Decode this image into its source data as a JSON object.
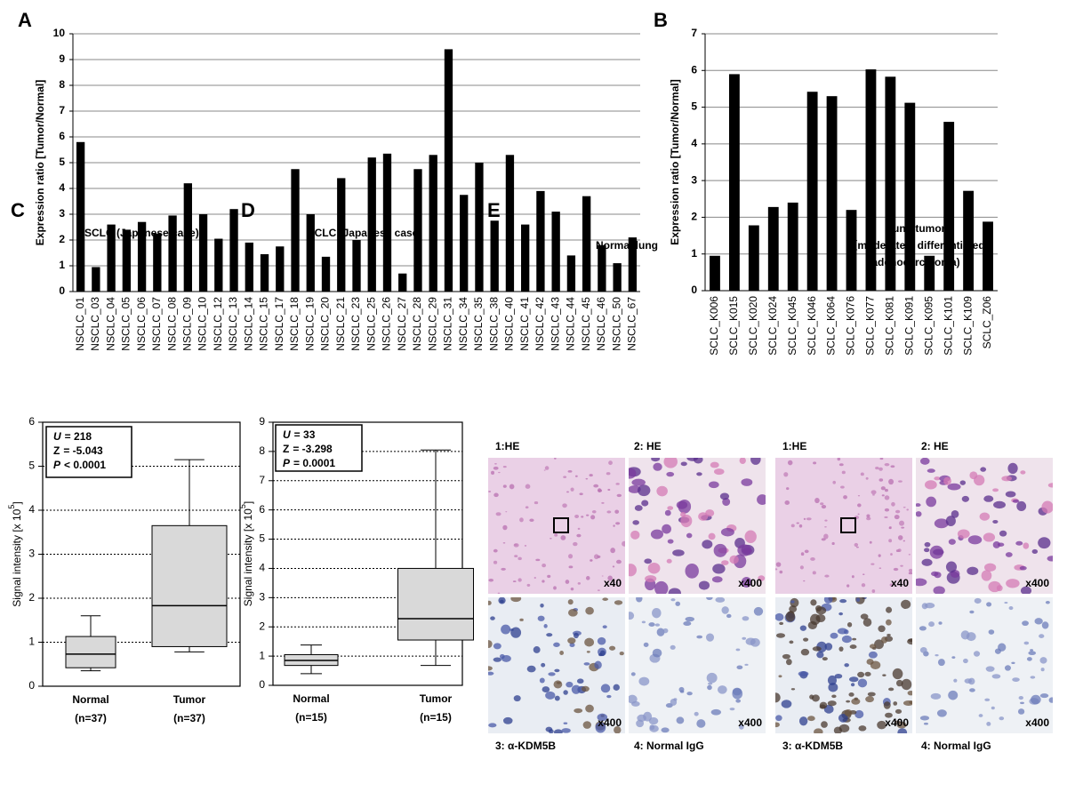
{
  "chart_data": [
    {
      "type": "bar",
      "label": "A",
      "ylabel": "Expression ratio [Tumor/Normal]",
      "categories": [
        "NSCLC_01",
        "NSCLC_03",
        "NSCLC_04",
        "NSCLC_05",
        "NSCLC_06",
        "NSCLC_07",
        "NSCLC_08",
        "NSCLC_09",
        "NSCLC_10",
        "NSCLC_12",
        "NSCLC_13",
        "NSCLC_14",
        "NSCLC_15",
        "NSCLC_17",
        "NSCLC_18",
        "NSCLC_19",
        "NSCLC_20",
        "NSCLC_21",
        "NSCLC_23",
        "NSCLC_25",
        "NSCLC_26",
        "NSCLC_27",
        "NSCLC_28",
        "NSCLC_29",
        "NSCLC_31",
        "NSCLC_34",
        "NSCLC_35",
        "NSCLC_38",
        "NSCLC_40",
        "NSCLC_41",
        "NSCLC_42",
        "NSCLC_43",
        "NSCLC_44",
        "NSCLC_45",
        "NSCLC_46",
        "NSCLC_50",
        "NSCLC_67"
      ],
      "values": [
        5.8,
        0.95,
        2.6,
        2.4,
        2.7,
        2.25,
        2.95,
        4.2,
        3.0,
        2.05,
        3.2,
        1.9,
        1.45,
        1.75,
        4.75,
        3.0,
        1.35,
        4.4,
        2.0,
        5.2,
        5.35,
        0.7,
        4.75,
        5.3,
        9.4,
        3.75,
        5.0,
        2.75,
        5.3,
        2.6,
        3.9,
        3.1,
        1.4,
        3.7,
        1.8,
        1.1,
        2.1
      ],
      "color": "#000000",
      "ylim": [
        0,
        10
      ],
      "yticks": [
        0,
        1,
        2,
        3,
        4,
        5,
        6,
        7,
        8,
        9,
        10
      ],
      "grid": true
    },
    {
      "type": "bar",
      "label": "B",
      "ylabel": "Expression ratio [Tumor/Normal]",
      "categories": [
        "SCLC_K006",
        "SCLC_K015",
        "SCLC_K020",
        "SCLC_K024",
        "SCLC_K045",
        "SCLC_K046",
        "SCLC_K064",
        "SCLC_K076",
        "SCLC_K077",
        "SCLC_K081",
        "SCLC_K091",
        "SCLC_K095",
        "SCLC_K101",
        "SCLC_K109",
        "SCLC_Z06"
      ],
      "values": [
        0.95,
        5.9,
        1.78,
        2.28,
        2.4,
        5.42,
        5.3,
        2.2,
        6.03,
        5.83,
        5.12,
        0.95,
        4.6,
        2.72,
        1.88
      ],
      "color": "#000000",
      "ylim": [
        0,
        7
      ],
      "yticks": [
        0,
        1,
        2,
        3,
        4,
        5,
        6,
        7
      ],
      "grid": true
    },
    {
      "type": "box",
      "label": "C",
      "title": "NSCLC (Japanese case)",
      "ylabel": "Signal intensity [x 10",
      "ylabel_sup": "5",
      "ylabel_end": "]",
      "categories": [
        "Normal",
        "Tumor"
      ],
      "n_labels": [
        "(n=37)",
        "(n=37)"
      ],
      "boxes": [
        {
          "whislo": 0.35,
          "q1": 0.42,
          "med": 0.73,
          "q3": 1.13,
          "whishi": 1.6
        },
        {
          "whislo": 0.78,
          "q1": 0.9,
          "med": 1.83,
          "q3": 3.65,
          "whishi": 5.15
        }
      ],
      "stats": [
        {
          "symbol": "U",
          "italic": true,
          "text": "= 218"
        },
        {
          "symbol": "Z",
          "italic": false,
          "text": "= -5.043"
        },
        {
          "symbol": "P",
          "italic": true,
          "text": "< 0.0001"
        }
      ],
      "color": "#d9d9d9",
      "ylim": [
        0,
        6
      ],
      "yticks": [
        0,
        1,
        2,
        3,
        4,
        5,
        6
      ],
      "grid": true
    },
    {
      "type": "box",
      "label": "D",
      "title": "SCLC (Japanese case)",
      "ylabel": "Signal intensity [x 10",
      "ylabel_sup": "5",
      "ylabel_end": "]",
      "categories": [
        "Normal",
        "Tumor"
      ],
      "n_labels": [
        "(n=15)",
        "(n=15)"
      ],
      "boxes": [
        {
          "whislo": 0.4,
          "q1": 0.68,
          "med": 0.85,
          "q3": 1.05,
          "whishi": 1.38
        },
        {
          "whislo": 0.68,
          "q1": 1.55,
          "med": 2.28,
          "q3": 4.0,
          "whishi": 8.05
        }
      ],
      "stats": [
        {
          "symbol": "U",
          "italic": true,
          "text": "= 33"
        },
        {
          "symbol": "Z",
          "italic": false,
          "text": "= -3.298"
        },
        {
          "symbol": "P",
          "italic": true,
          "text": "= 0.0001"
        }
      ],
      "color": "#d9d9d9",
      "ylim": [
        0,
        9
      ],
      "yticks": [
        0,
        1,
        2,
        3,
        4,
        5,
        6,
        7,
        8,
        9
      ],
      "grid": true
    }
  ],
  "panel_e": {
    "label": "E",
    "groups": [
      {
        "title_lines": [
          "Normal lung"
        ],
        "images": [
          {
            "label": "1:HE",
            "mag": "x40"
          },
          {
            "label": "2: HE",
            "mag": "x400"
          },
          {
            "label": "3: α-KDM5B",
            "mag": "x400"
          },
          {
            "label": "4: Normal IgG",
            "mag": "x400"
          }
        ]
      },
      {
        "title_lines": [
          "Lung tumor",
          "（moderately differentiated",
          "adenocarcinoma)"
        ],
        "images": [
          {
            "label": "1:HE",
            "mag": "x40"
          },
          {
            "label": "2: HE",
            "mag": "x400"
          },
          {
            "label": "3: α-KDM5B",
            "mag": "x400"
          },
          {
            "label": "4: Normal IgG",
            "mag": "x400"
          }
        ]
      }
    ]
  }
}
